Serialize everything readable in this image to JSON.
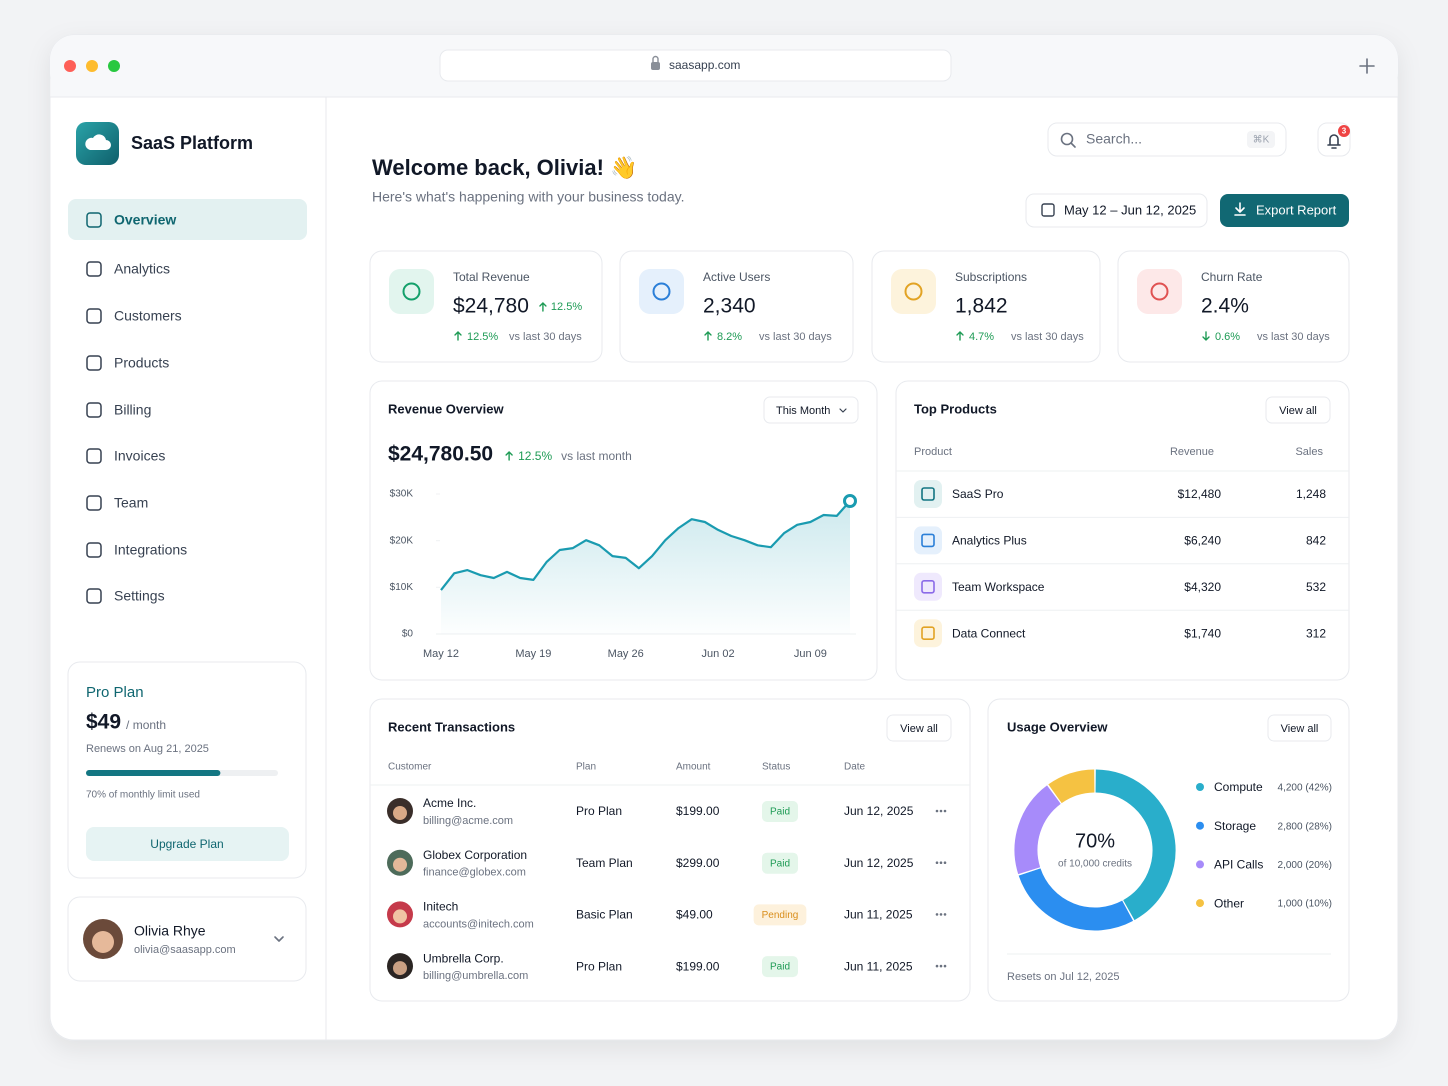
{
  "browser": {
    "url": "saasapp.com"
  },
  "sidebar": {
    "brand": "SaaS Platform",
    "nav": [
      "Overview",
      "Analytics",
      "Customers",
      "Products",
      "Billing",
      "Invoices",
      "Team",
      "Integrations",
      "Settings"
    ],
    "plan": {
      "name": "Pro Plan",
      "price": "$49",
      "period": "/ month",
      "renews": "Renews on Aug 21, 2025",
      "usage_percent": 70,
      "usage_text": "70% of monthly limit used",
      "button": "Upgrade Plan"
    },
    "user": {
      "name": "Olivia Rhye",
      "email": "olivia@saasapp.com"
    }
  },
  "header": {
    "title": "Welcome back, Olivia! 👋",
    "subtitle": "Here's what's happening with your business today.",
    "search": "Search...",
    "shortcut": "⌘K",
    "notifications": "3",
    "date_range": "May 12 – Jun 12, 2025",
    "export": "Export Report"
  },
  "kpis": [
    {
      "label": "Total Revenue",
      "value": "$24,780",
      "badge": "12.5%",
      "change": "12.5%",
      "direction": "up",
      "compare": "vs last 30 days"
    },
    {
      "label": "Active Users",
      "value": "2,340",
      "change": "8.2%",
      "direction": "up",
      "compare": "vs last 30 days"
    },
    {
      "label": "Subscriptions",
      "value": "1,842",
      "change": "4.7%",
      "direction": "up",
      "compare": "vs last 30 days"
    },
    {
      "label": "Churn Rate",
      "value": "2.4%",
      "change": "0.6%",
      "direction": "down",
      "compare": "vs last 30 days"
    }
  ],
  "revenue_overview": {
    "title": "Revenue Overview",
    "filter": "This Month",
    "amount": "$24,780.50",
    "change": "12.5%",
    "compare": "vs last month"
  },
  "chart_data": [
    {
      "type": "line",
      "color": "#1a9bb0",
      "categories": [
        "May 12",
        null,
        null,
        null,
        null,
        null,
        null,
        "May 19",
        null,
        null,
        null,
        null,
        null,
        null,
        "May 26",
        null,
        null,
        null,
        null,
        null,
        null,
        "Jun 02",
        null,
        null,
        null,
        null,
        null,
        null,
        "Jun 09",
        null,
        null,
        null
      ],
      "values": [
        9400,
        13000,
        13700,
        12600,
        12000,
        13300,
        12000,
        11600,
        15400,
        18000,
        18400,
        20100,
        19000,
        16700,
        16300,
        14100,
        16700,
        20100,
        22700,
        24600,
        24000,
        22300,
        21000,
        20100,
        19000,
        18600,
        21600,
        23400,
        24000,
        25500,
        25300,
        28500
      ],
      "ylim": [
        0,
        30000
      ],
      "yticks": [
        {
          "value": 0,
          "label": "$0"
        },
        {
          "value": 10000,
          "label": "$10K"
        },
        {
          "value": 20000,
          "label": "$20K"
        },
        {
          "value": 30000,
          "label": "$30K"
        }
      ]
    },
    {
      "type": "pie",
      "categories": [
        "Compute",
        "Storage",
        "API Calls",
        "Other"
      ],
      "values": [
        4200,
        2800,
        2000,
        1000
      ],
      "value_labels": [
        "4,200 (42%)",
        "2,800 (28%)",
        "2,000 (20%)",
        "1,000 (10%)"
      ],
      "colors": [
        "#29aecb",
        "#2b8ef0",
        "#a78bfa",
        "#f5c242"
      ]
    }
  ],
  "top_products": {
    "title": "Top Products",
    "action": "View all",
    "columns": [
      "Product",
      "Revenue",
      "Sales"
    ],
    "rows": [
      {
        "name": "SaaS Pro",
        "revenue": "$12,480",
        "sales": "1,248"
      },
      {
        "name": "Analytics Plus",
        "revenue": "$6,240",
        "sales": "842"
      },
      {
        "name": "Team Workspace",
        "revenue": "$4,320",
        "sales": "532"
      },
      {
        "name": "Data Connect",
        "revenue": "$1,740",
        "sales": "312"
      }
    ]
  },
  "transactions": {
    "title": "Recent Transactions",
    "action": "View all",
    "columns": [
      "Customer",
      "Plan",
      "Amount",
      "Status",
      "Date"
    ],
    "rows": [
      {
        "customer": "Acme Inc.",
        "email": "billing@acme.com",
        "plan": "Pro Plan",
        "amount": "$199.00",
        "status": "Paid",
        "date": "Jun 12, 2025"
      },
      {
        "customer": "Globex Corporation",
        "email": "finance@globex.com",
        "plan": "Team Plan",
        "amount": "$299.00",
        "status": "Paid",
        "date": "Jun 12, 2025"
      },
      {
        "customer": "Initech",
        "email": "accounts@initech.com",
        "plan": "Basic Plan",
        "amount": "$49.00",
        "status": "Pending",
        "date": "Jun 11, 2025"
      },
      {
        "customer": "Umbrella Corp.",
        "email": "billing@umbrella.com",
        "plan": "Pro Plan",
        "amount": "$199.00",
        "status": "Paid",
        "date": "Jun 11, 2025"
      }
    ]
  },
  "usage": {
    "title": "Usage Overview",
    "action": "View all",
    "center": "70%",
    "center_sub": "of 10,000 credits",
    "footer": "Resets on Jul 12, 2025"
  }
}
